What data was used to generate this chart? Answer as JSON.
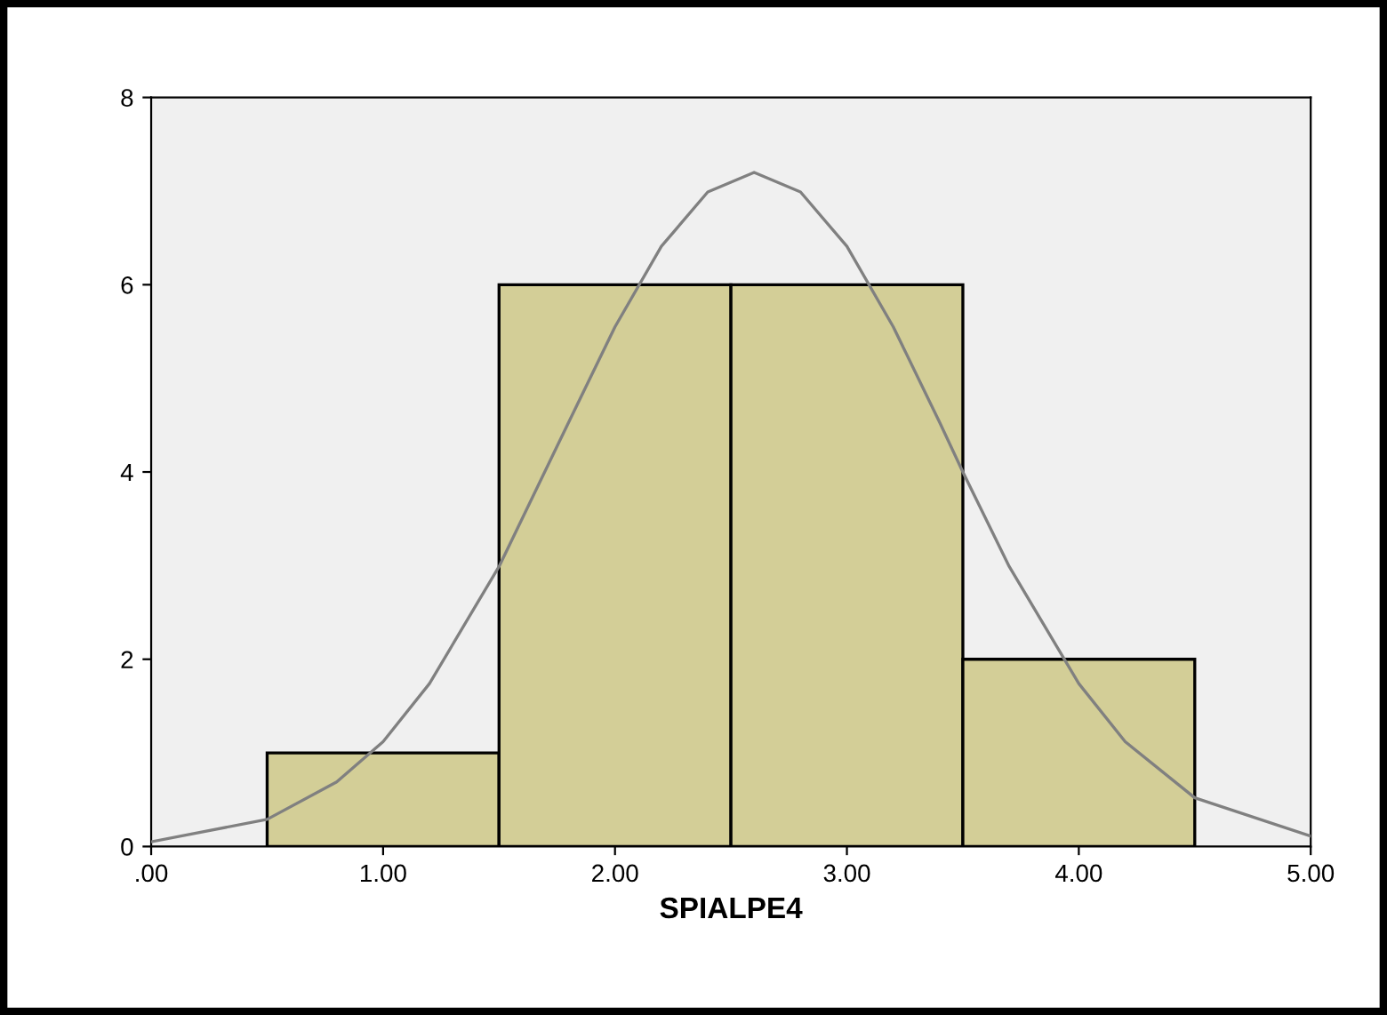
{
  "chart_data": {
    "type": "histogram",
    "xlabel": "SPIALPE4",
    "bins": [
      0.5,
      1.5,
      2.5,
      3.5,
      4.5
    ],
    "series": [
      {
        "type": "histogram",
        "color": "#d3ce97",
        "values": [
          1,
          6,
          6,
          2
        ]
      },
      {
        "type": "line",
        "color": "#808080",
        "x": [
          0.0,
          0.5,
          0.8,
          1.0,
          1.2,
          1.5,
          1.8,
          2.0,
          2.2,
          2.4,
          2.6,
          2.8,
          3.0,
          3.2,
          3.4,
          3.5,
          3.7,
          4.0,
          4.2,
          4.5,
          5.0
        ],
        "values": [
          0.05,
          0.29,
          0.69,
          1.12,
          1.74,
          2.99,
          4.53,
          5.55,
          6.41,
          6.99,
          7.2,
          6.99,
          6.41,
          5.55,
          4.53,
          4.0,
          2.99,
          1.74,
          1.12,
          0.52,
          0.11
        ]
      }
    ],
    "xlim": [
      0,
      5
    ],
    "ylim": [
      0,
      8
    ],
    "xticks": [
      {
        "value": 0,
        "label": ".00"
      },
      {
        "value": 1,
        "label": "1.00"
      },
      {
        "value": 2,
        "label": "2.00"
      },
      {
        "value": 3,
        "label": "3.00"
      },
      {
        "value": 4,
        "label": "4.00"
      },
      {
        "value": 5,
        "label": "5.00"
      }
    ],
    "yticks": [
      0,
      2,
      4,
      6,
      8
    ],
    "grid": false,
    "legend": false
  }
}
